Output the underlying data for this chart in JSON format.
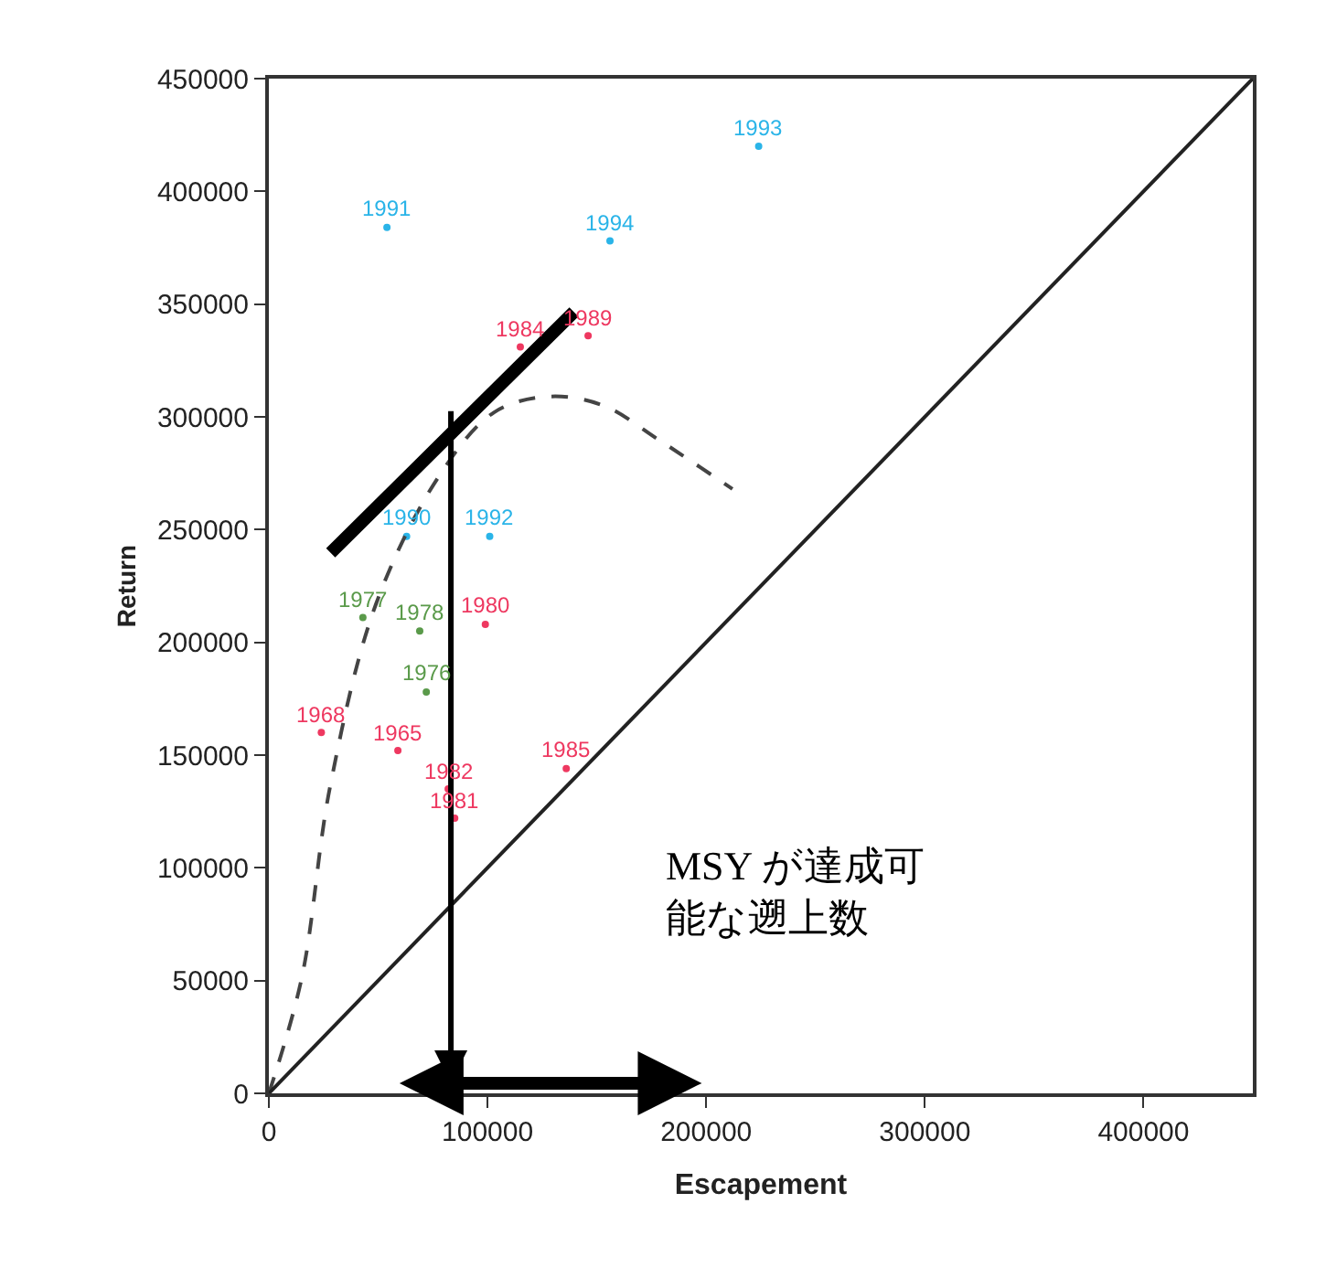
{
  "chart_data": {
    "type": "scatter",
    "xlabel": "Escapement",
    "ylabel": "Return",
    "xlim": [
      0,
      450000
    ],
    "xticks": [
      0,
      100000,
      200000,
      300000,
      400000
    ],
    "ylim": [
      0,
      450000
    ],
    "yticks": [
      0,
      50000,
      100000,
      150000,
      200000,
      250000,
      300000,
      350000,
      400000,
      450000
    ],
    "series": [
      {
        "marker": "circle",
        "color": "#ee3860",
        "x": [
          115000,
          146000,
          99000,
          24000,
          59000,
          82000,
          85000,
          136000
        ],
        "values": [
          331000,
          336000,
          208000,
          160000,
          152000,
          135000,
          122000,
          144000
        ]
      },
      {
        "marker": "circle",
        "color": "#5a9a4a",
        "x": [
          43000,
          69000,
          72000
        ],
        "values": [
          211000,
          205000,
          178000
        ]
      },
      {
        "marker": "circle",
        "color": "#2ab4e8",
        "x": [
          224000,
          54000,
          156000,
          63000,
          101000
        ],
        "values": [
          420000,
          384000,
          378000,
          247000,
          247000
        ]
      },
      {
        "type": "line",
        "line_style": "dashed",
        "color": "#444444",
        "x": [
          0,
          15000,
          28000,
          49000,
          78000,
          103000,
          128000,
          153000,
          178000,
          212000
        ],
        "values": [
          0,
          51000,
          136000,
          217000,
          274000,
          302000,
          309000,
          305000,
          290000,
          268000
        ]
      },
      {
        "type": "line",
        "line_style": "solid",
        "color": "#222222",
        "x": [
          0,
          450000
        ],
        "values": [
          0,
          450000
        ]
      }
    ],
    "annotations": [
      {
        "text": "1984",
        "x": 115000,
        "y": 331000
      },
      {
        "text": "1989",
        "x": 146000,
        "y": 336000
      },
      {
        "text": "1980",
        "x": 99000,
        "y": 208000
      },
      {
        "text": "1968",
        "x": 24000,
        "y": 160000
      },
      {
        "text": "1965",
        "x": 59000,
        "y": 152000
      },
      {
        "text": "1982",
        "x": 82000,
        "y": 135000
      },
      {
        "text": "1981",
        "x": 85000,
        "y": 122000
      },
      {
        "text": "1985",
        "x": 136000,
        "y": 144000
      },
      {
        "text": "1977",
        "x": 43000,
        "y": 211000
      },
      {
        "text": "1978",
        "x": 69000,
        "y": 205000
      },
      {
        "text": "1976",
        "x": 72000,
        "y": 178000
      },
      {
        "text": "1993",
        "x": 224000,
        "y": 420000
      },
      {
        "text": "1991",
        "x": 54000,
        "y": 384000
      },
      {
        "text": "1994",
        "x": 156000,
        "y": 378000
      },
      {
        "text": "1990",
        "x": 63000,
        "y": 247000
      },
      {
        "text": "1992",
        "x": 101000,
        "y": 247000
      },
      "MSY が達成可能な遡上数"
    ]
  }
}
